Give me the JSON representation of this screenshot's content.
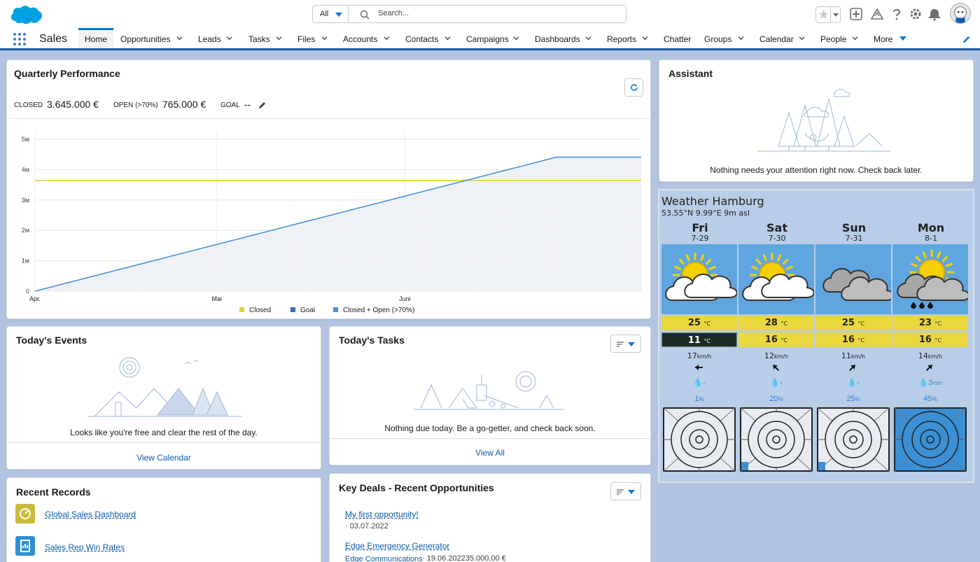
{
  "header": {
    "search_scope": "All",
    "search_placeholder": "Search...",
    "colors": {
      "brand": "#0176d3",
      "nav_border": "#1b5aa4"
    }
  },
  "nav": {
    "app_name": "Sales",
    "items": [
      {
        "label": "Home",
        "active": true
      },
      {
        "label": "Opportunities"
      },
      {
        "label": "Leads"
      },
      {
        "label": "Tasks"
      },
      {
        "label": "Files"
      },
      {
        "label": "Accounts"
      },
      {
        "label": "Contacts"
      },
      {
        "label": "Campaigns"
      },
      {
        "label": "Dashboards"
      },
      {
        "label": "Reports"
      },
      {
        "label": "Chatter"
      },
      {
        "label": "Groups"
      },
      {
        "label": "Calendar"
      },
      {
        "label": "People"
      },
      {
        "label": "More"
      }
    ]
  },
  "quarterly": {
    "title": "Quarterly Performance",
    "closed_label": "CLOSED",
    "closed_value": "3.645.000 €",
    "open_label": "OPEN (>70%)",
    "open_value": "765.000 €",
    "goal_label": "GOAL",
    "goal_value": "--"
  },
  "chart_data": {
    "type": "line",
    "x_ticks": [
      "Apr.",
      "Mai",
      "Juni"
    ],
    "y_ticks": [
      "0",
      "1м",
      "2м",
      "3м",
      "4м",
      "5м"
    ],
    "ylim": [
      0,
      5000000
    ],
    "x_domain_days": "Apr. 1 to ~Jul. 10",
    "series": [
      {
        "name": "Closed",
        "color": "#e0d33a",
        "points": [
          [
            0,
            3645000
          ],
          [
            100,
            3645000
          ]
        ]
      },
      {
        "name": "Goal",
        "color": "#3c6db5",
        "points": []
      },
      {
        "name": "Closed + Open (>70%)",
        "color": "#4a90d9",
        "points": [
          [
            0,
            0
          ],
          [
            86,
            4410000
          ],
          [
            100,
            4410000
          ]
        ]
      }
    ],
    "legend": [
      "Closed",
      "Goal",
      "Closed + Open (>70%)"
    ],
    "legend_position": "bottom",
    "grid": true
  },
  "assistant": {
    "title": "Assistant",
    "message": "Nothing needs your attention right now. Check back later."
  },
  "events": {
    "title": "Today's Events",
    "message": "Looks like you're free and clear the rest of the day.",
    "footer": "View Calendar"
  },
  "tasks": {
    "title": "Today's Tasks",
    "message": "Nothing due today. Be a go-getter, and check back soon.",
    "footer": "View All"
  },
  "recent_records": {
    "title": "Recent Records",
    "items": [
      {
        "label": "Global Sales Dashboard",
        "icon": "dashboard-icon",
        "color": "#c8bd3a"
      },
      {
        "label": "Sales Rep Win Rates",
        "icon": "report-icon",
        "color": "#2e8fd4"
      }
    ]
  },
  "key_deals": {
    "title": "Key Deals - Recent Opportunities",
    "deals": [
      {
        "name": "My first opportunity!",
        "sub": "· 03.07.2022"
      },
      {
        "name": "Edge Emergency Generator",
        "account": "Edge Communications",
        "sub": "· 19.06.202235.000,00 €"
      }
    ]
  },
  "weather": {
    "title": "Weather Hamburg",
    "subtitle": "53.55°N 9.99°E 9m asl",
    "temp_unit": "°C",
    "wind_unit": "km/h",
    "precip_unit": "mm",
    "days": [
      {
        "day": "Fri",
        "date": "7-29",
        "icon": "partly-sunny-icon",
        "high": "25",
        "low": "11",
        "low_dark": true,
        "wind": "17",
        "wind_dir": "east-arrow-icon",
        "precip": "-",
        "prob": "1"
      },
      {
        "day": "Sat",
        "date": "7-30",
        "icon": "partly-sunny-icon",
        "high": "28",
        "low": "16",
        "low_dark": false,
        "wind": "12",
        "wind_dir": "southwest-arrow-icon",
        "precip": "-",
        "prob": "20"
      },
      {
        "day": "Sun",
        "date": "7-31",
        "icon": "cloudy-icon",
        "high": "25",
        "low": "16",
        "low_dark": false,
        "wind": "11",
        "wind_dir": "southeast-arrow-icon",
        "precip": "-",
        "prob": "25"
      },
      {
        "day": "Mon",
        "date": "8-1",
        "icon": "rain-sun-icon",
        "high": "23",
        "low": "16",
        "low_dark": false,
        "wind": "14",
        "wind_dir": "southeast-arrow-icon",
        "precip": "3",
        "prob": "45"
      }
    ]
  }
}
